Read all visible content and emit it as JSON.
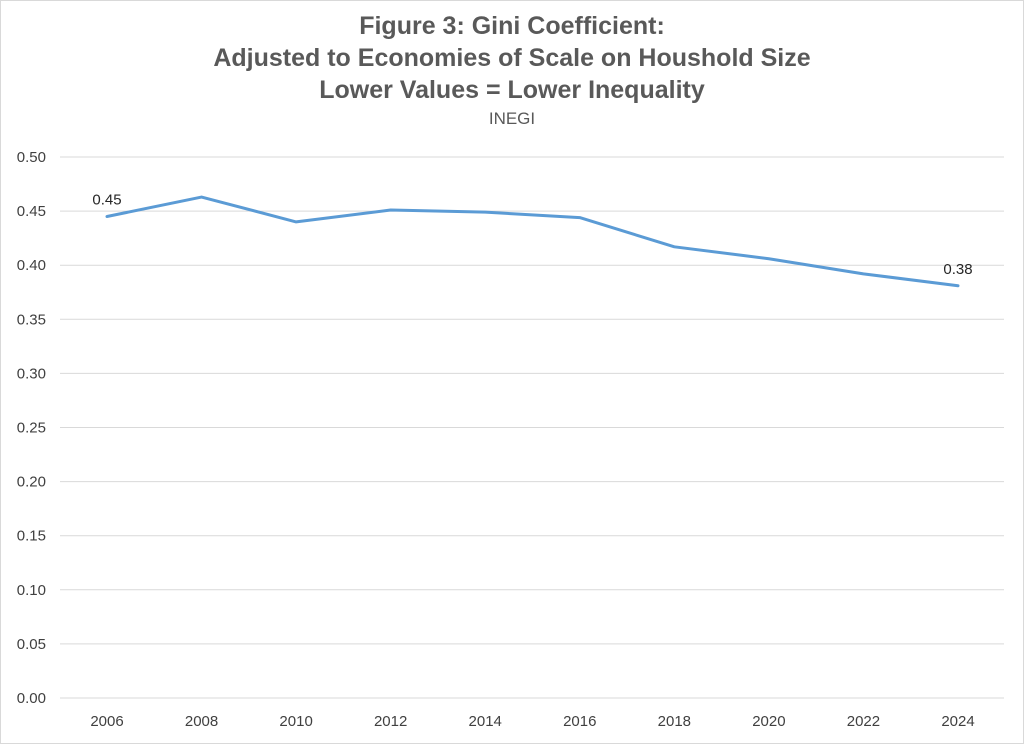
{
  "chart_data": {
    "type": "line",
    "title_lines": [
      "Figure 3: Gini Coefficient:",
      "Adjusted to Economies of Scale on Houshold Size",
      "Lower Values = Lower Inequality"
    ],
    "subtitle": "INEGI",
    "x": [
      "2006",
      "2008",
      "2010",
      "2012",
      "2014",
      "2016",
      "2018",
      "2020",
      "2022",
      "2024"
    ],
    "series": [
      {
        "values": [
          0.445,
          0.463,
          0.44,
          0.451,
          0.449,
          0.444,
          0.417,
          0.406,
          0.392,
          0.381
        ],
        "color": "#5b9bd5"
      }
    ],
    "data_labels": [
      {
        "index": 0,
        "text": "0.45"
      },
      {
        "index": 9,
        "text": "0.38"
      }
    ],
    "ylim": [
      0.0,
      0.5
    ],
    "yticks": [
      "0.00",
      "0.05",
      "0.10",
      "0.15",
      "0.20",
      "0.25",
      "0.30",
      "0.35",
      "0.40",
      "0.45",
      "0.50"
    ],
    "grid": true,
    "gridline_color": "#d9d9d9"
  }
}
